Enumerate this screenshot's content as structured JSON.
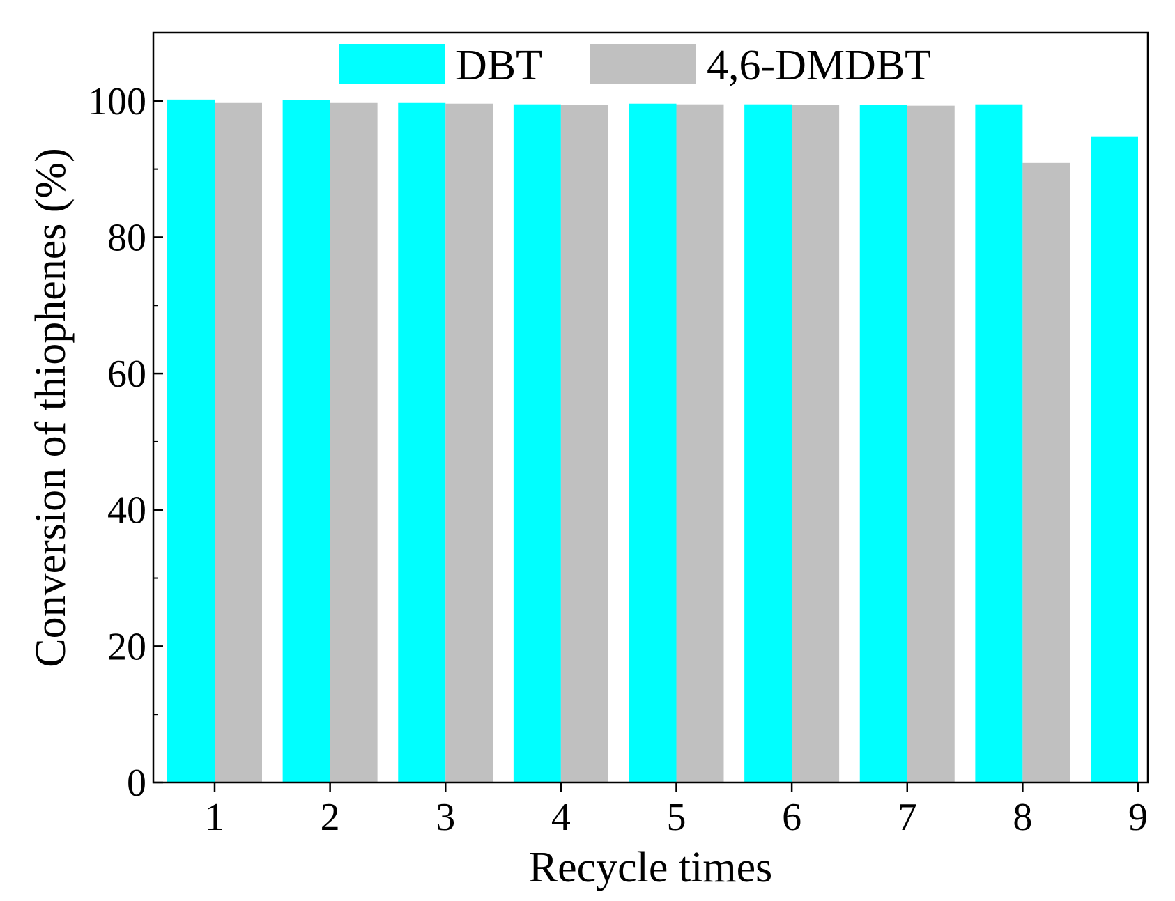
{
  "chart_data": {
    "type": "bar",
    "title": "",
    "xlabel": "Recycle times",
    "ylabel": "Conversion of thiophenes (%)",
    "categories": [
      "1",
      "2",
      "3",
      "4",
      "5",
      "6",
      "7",
      "8",
      "9"
    ],
    "ylim": [
      0,
      110
    ],
    "yticks": [
      "0",
      "20",
      "40",
      "60",
      "80",
      "100"
    ],
    "grid": false,
    "legend_position": "top",
    "series": [
      {
        "name": "DBT",
        "color": "#00ffff",
        "values": [
          100.2,
          100.1,
          99.7,
          99.5,
          99.6,
          99.5,
          99.4,
          99.5,
          94.8
        ]
      },
      {
        "name": "4,6-DMDBT",
        "color": "#c0c0c0",
        "values": [
          99.7,
          99.7,
          99.6,
          99.4,
          99.5,
          99.4,
          99.3,
          90.9,
          null
        ]
      }
    ]
  }
}
